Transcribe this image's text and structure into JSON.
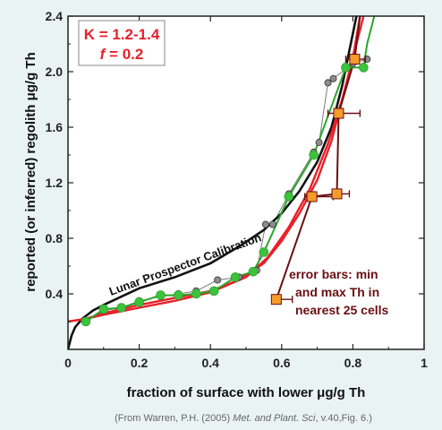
{
  "chart_data": {
    "type": "line",
    "xlabel": "fraction of surface with lower μg/g Th",
    "ylabel": "reported (or inferred) regolith μg/g Th",
    "xlim": [
      0,
      1
    ],
    "ylim": [
      0,
      2.4
    ],
    "x_ticks": [
      "0",
      "0.2",
      "0.4",
      "0.6",
      "0.8",
      "1"
    ],
    "x_tick_values": [
      0,
      0.2,
      0.4,
      0.6,
      0.8,
      1
    ],
    "y_ticks": [
      "0.4",
      "0.8",
      "1.2",
      "1.6",
      "2.0",
      "2.4"
    ],
    "y_tick_values": [
      0.4,
      0.8,
      1.2,
      1.6,
      2.0,
      2.4
    ],
    "grid": false,
    "param_box": {
      "line1": "K = 1.2-1.4",
      "f_symbol": "f",
      "line2_rest": " = 0.2"
    },
    "annotations": {
      "calibration_label": "Lunar Prospector Calibration",
      "error_note": [
        "error bars: min",
        "and max Th in",
        "nearest 25 cells"
      ]
    },
    "credit": {
      "prefix": "(From Warren, P.H. (2005) ",
      "journal": "Met. and Plant. Sci",
      "suffix": ", v.40,Fig. 6.)"
    },
    "colors": {
      "red": "#e8202a",
      "green_line": "#2aa52a",
      "green_marker": "#3cc23c",
      "gray_marker": "#8c8c8c",
      "black": "#111111",
      "dark_red": "#6b0f12",
      "orange_marker": "#f59b2a"
    },
    "series": [
      {
        "kind": "black-curve",
        "x": [
          0,
          0.01,
          0.02,
          0.04,
          0.07,
          0.1,
          0.15,
          0.2,
          0.3,
          0.4,
          0.48,
          0.55,
          0.6,
          0.65,
          0.7,
          0.74,
          0.77,
          0.79,
          0.81
        ],
        "y": [
          0,
          0.1,
          0.16,
          0.22,
          0.28,
          0.32,
          0.38,
          0.44,
          0.52,
          0.62,
          0.74,
          0.86,
          0.98,
          1.14,
          1.35,
          1.6,
          1.9,
          2.15,
          2.4
        ]
      },
      {
        "kind": "red-curve",
        "x": [
          0,
          0.05,
          0.1,
          0.2,
          0.3,
          0.4,
          0.48,
          0.55,
          0.6,
          0.65,
          0.7,
          0.74,
          0.77,
          0.8,
          0.82
        ],
        "y": [
          0.2,
          0.22,
          0.26,
          0.32,
          0.37,
          0.42,
          0.5,
          0.62,
          0.78,
          0.98,
          1.22,
          1.5,
          1.8,
          2.1,
          2.4
        ]
      },
      {
        "kind": "red-curve",
        "x": [
          0,
          0.05,
          0.1,
          0.2,
          0.3,
          0.4,
          0.5,
          0.56,
          0.62,
          0.68,
          0.73,
          0.77,
          0.8,
          0.83
        ],
        "y": [
          0.2,
          0.22,
          0.25,
          0.3,
          0.35,
          0.41,
          0.52,
          0.66,
          0.88,
          1.16,
          1.48,
          1.8,
          2.1,
          2.4
        ]
      },
      {
        "kind": "gray-markers",
        "x": [
          0.05,
          0.1,
          0.15,
          0.2,
          0.26,
          0.31,
          0.36,
          0.42,
          0.48,
          0.53,
          0.555,
          0.575,
          0.62,
          0.69,
          0.705,
          0.73,
          0.745,
          0.8,
          0.84
        ],
        "y": [
          0.2,
          0.28,
          0.3,
          0.35,
          0.38,
          0.4,
          0.42,
          0.5,
          0.52,
          0.57,
          0.9,
          0.9,
          1.12,
          1.42,
          1.49,
          1.92,
          1.95,
          2.06,
          2.09
        ]
      },
      {
        "kind": "green-line",
        "x": [
          0.05,
          0.1,
          0.15,
          0.2,
          0.26,
          0.31,
          0.36,
          0.41,
          0.47,
          0.52,
          0.55,
          0.62,
          0.69,
          0.78,
          0.83,
          0.84,
          0.86
        ],
        "y": [
          0.2,
          0.29,
          0.3,
          0.34,
          0.39,
          0.39,
          0.4,
          0.42,
          0.52,
          0.56,
          0.7,
          1.1,
          1.4,
          2.03,
          2.03,
          2.2,
          2.4
        ]
      },
      {
        "kind": "orange-error",
        "x": [
          0.585,
          0.685,
          0.755,
          0.76,
          0.805
        ],
        "y": [
          0.36,
          1.1,
          1.12,
          1.7,
          2.09
        ],
        "xerr_low": [
          0.01,
          0.02,
          0.005,
          0.03,
          0.025
        ],
        "xerr_high": [
          0.045,
          0.06,
          0.035,
          0.06,
          0.03
        ],
        "link": [
          0.585,
          0.685,
          0.755,
          0.76,
          0.805,
          0.82
        ]
      }
    ]
  }
}
